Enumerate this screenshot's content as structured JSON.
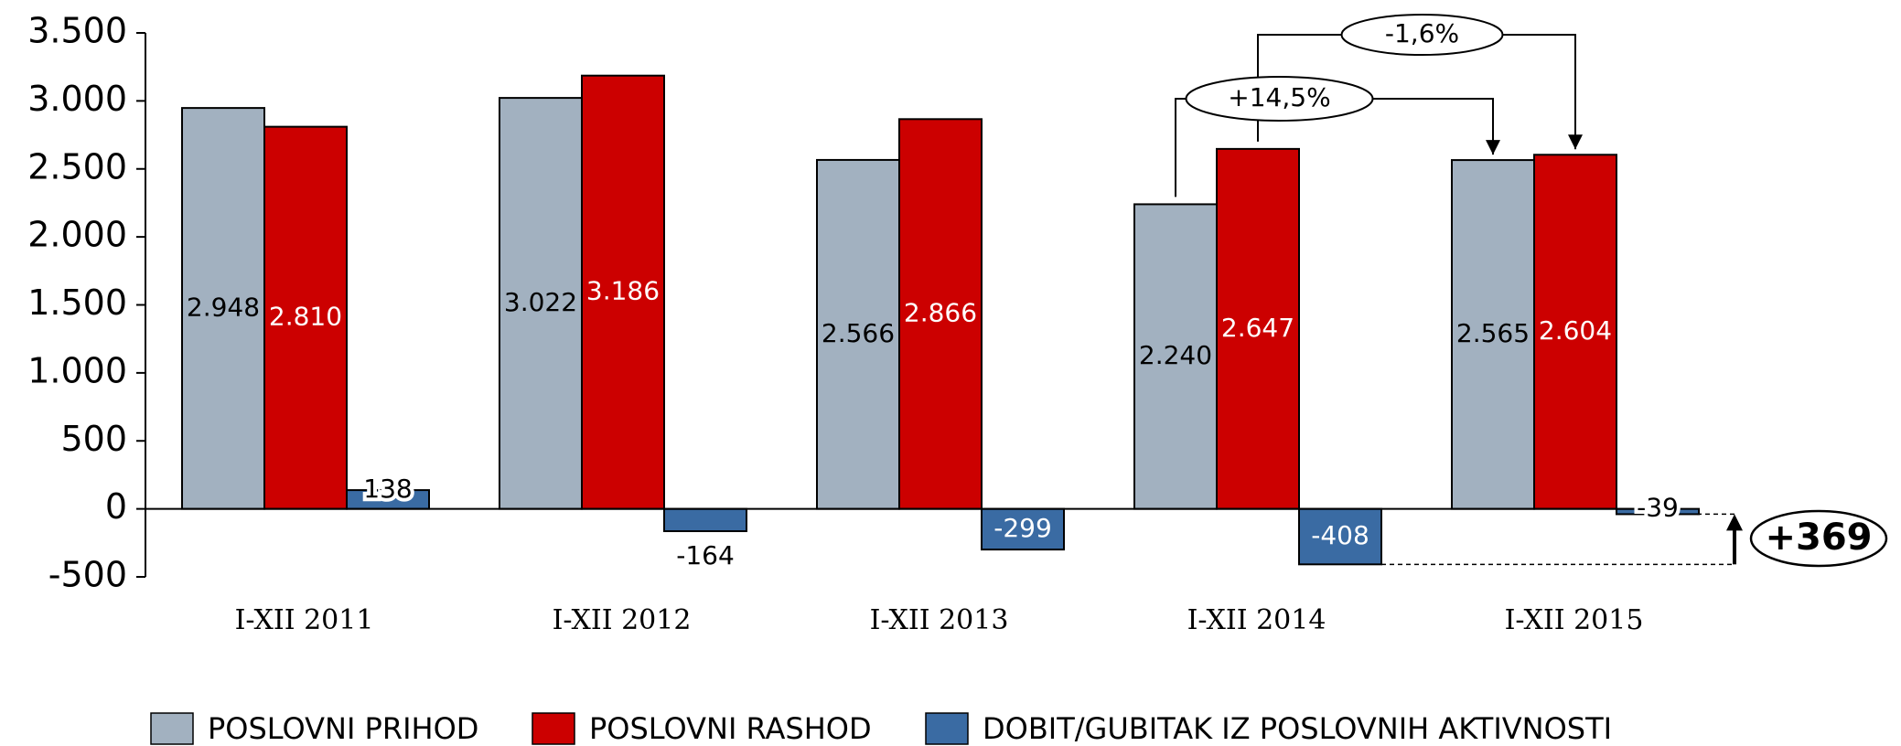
{
  "chart_data": {
    "type": "bar",
    "categories": [
      "I-XII 2011",
      "I-XII 2012",
      "I-XII 2013",
      "I-XII 2014",
      "I-XII 2015"
    ],
    "series": [
      {
        "name": "POSLOVNI PRIHOD",
        "color": "#a2b1c0",
        "values": [
          2948,
          3022,
          2566,
          2240,
          2565
        ],
        "value_labels": [
          "2.948",
          "3.022",
          "2.566",
          "2.240",
          "2.565"
        ]
      },
      {
        "name": "POSLOVNI RASHOD",
        "color": "#cc0000",
        "values": [
          2810,
          3186,
          2866,
          2647,
          2604
        ],
        "value_labels": [
          "2.810",
          "3.186",
          "2.866",
          "2.647",
          "2.604"
        ]
      },
      {
        "name": "DOBIT/GUBITAK IZ POSLOVNIH AKTIVNOSTI",
        "color": "#3a6ba3",
        "values": [
          138,
          -164,
          -299,
          -408,
          -39
        ]
      }
    ],
    "ylim": [
      -500,
      3500
    ],
    "yticks": [
      {
        "value": -500,
        "label": "-500"
      },
      0,
      500,
      {
        "value": 1000,
        "label": "1.000"
      },
      {
        "value": 1500,
        "label": "1.500"
      },
      {
        "value": 2000,
        "label": "2.000"
      },
      {
        "value": 2500,
        "label": "2.500"
      },
      {
        "value": 3000,
        "label": "3.000"
      },
      {
        "value": 3500,
        "label": "3.500"
      }
    ],
    "annotations": [
      "+14,5%",
      "-1,6%",
      "+369"
    ],
    "legend": "bottom"
  }
}
